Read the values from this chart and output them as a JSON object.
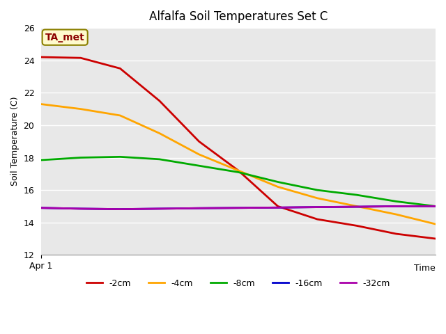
{
  "title": "Alfalfa Soil Temperatures Set C",
  "xlabel": "Time",
  "ylabel": "Soil Temperature (C)",
  "ylim": [
    12,
    26
  ],
  "yticks": [
    12,
    14,
    16,
    18,
    20,
    22,
    24,
    26
  ],
  "xlim": [
    0,
    10
  ],
  "x_start_label": "Apr 1",
  "annotation_label": "TA_met",
  "annotation_color": "#8B0000",
  "annotation_bg": "#FFFACD",
  "annotation_border": "#8B8000",
  "background_color": "#E8E8E8",
  "series": {
    "-2cm": {
      "color": "#CC0000",
      "x": [
        0,
        1,
        2,
        3,
        4,
        5,
        6,
        7,
        8,
        9,
        10
      ],
      "y": [
        24.2,
        24.15,
        23.5,
        21.5,
        19.0,
        17.2,
        15.0,
        14.2,
        13.8,
        13.3,
        13.0
      ]
    },
    "-4cm": {
      "color": "#FFA500",
      "x": [
        0,
        1,
        2,
        3,
        4,
        5,
        6,
        7,
        8,
        9,
        10
      ],
      "y": [
        21.3,
        21.0,
        20.6,
        19.5,
        18.2,
        17.2,
        16.2,
        15.5,
        15.0,
        14.5,
        13.9
      ]
    },
    "-8cm": {
      "color": "#00AA00",
      "x": [
        0,
        1,
        2,
        3,
        4,
        5,
        6,
        7,
        8,
        9,
        10
      ],
      "y": [
        17.85,
        18.0,
        18.05,
        17.9,
        17.5,
        17.1,
        16.5,
        16.0,
        15.7,
        15.3,
        15.0
      ]
    },
    "-16cm": {
      "color": "#0000CC",
      "x": [
        0,
        1,
        2,
        3,
        4,
        5,
        6,
        7,
        8,
        9,
        10
      ],
      "y": [
        14.9,
        14.85,
        14.82,
        14.85,
        14.88,
        14.9,
        14.92,
        14.95,
        14.97,
        15.0,
        15.0
      ]
    },
    "-32cm": {
      "color": "#AA00AA",
      "x": [
        0,
        1,
        2,
        3,
        4,
        5,
        6,
        7,
        8,
        9,
        10
      ],
      "y": [
        14.9,
        14.85,
        14.82,
        14.85,
        14.88,
        14.9,
        14.92,
        14.95,
        14.97,
        15.0,
        15.0
      ]
    }
  },
  "legend_order": [
    "-2cm",
    "-4cm",
    "-8cm",
    "-16cm",
    "-32cm"
  ]
}
